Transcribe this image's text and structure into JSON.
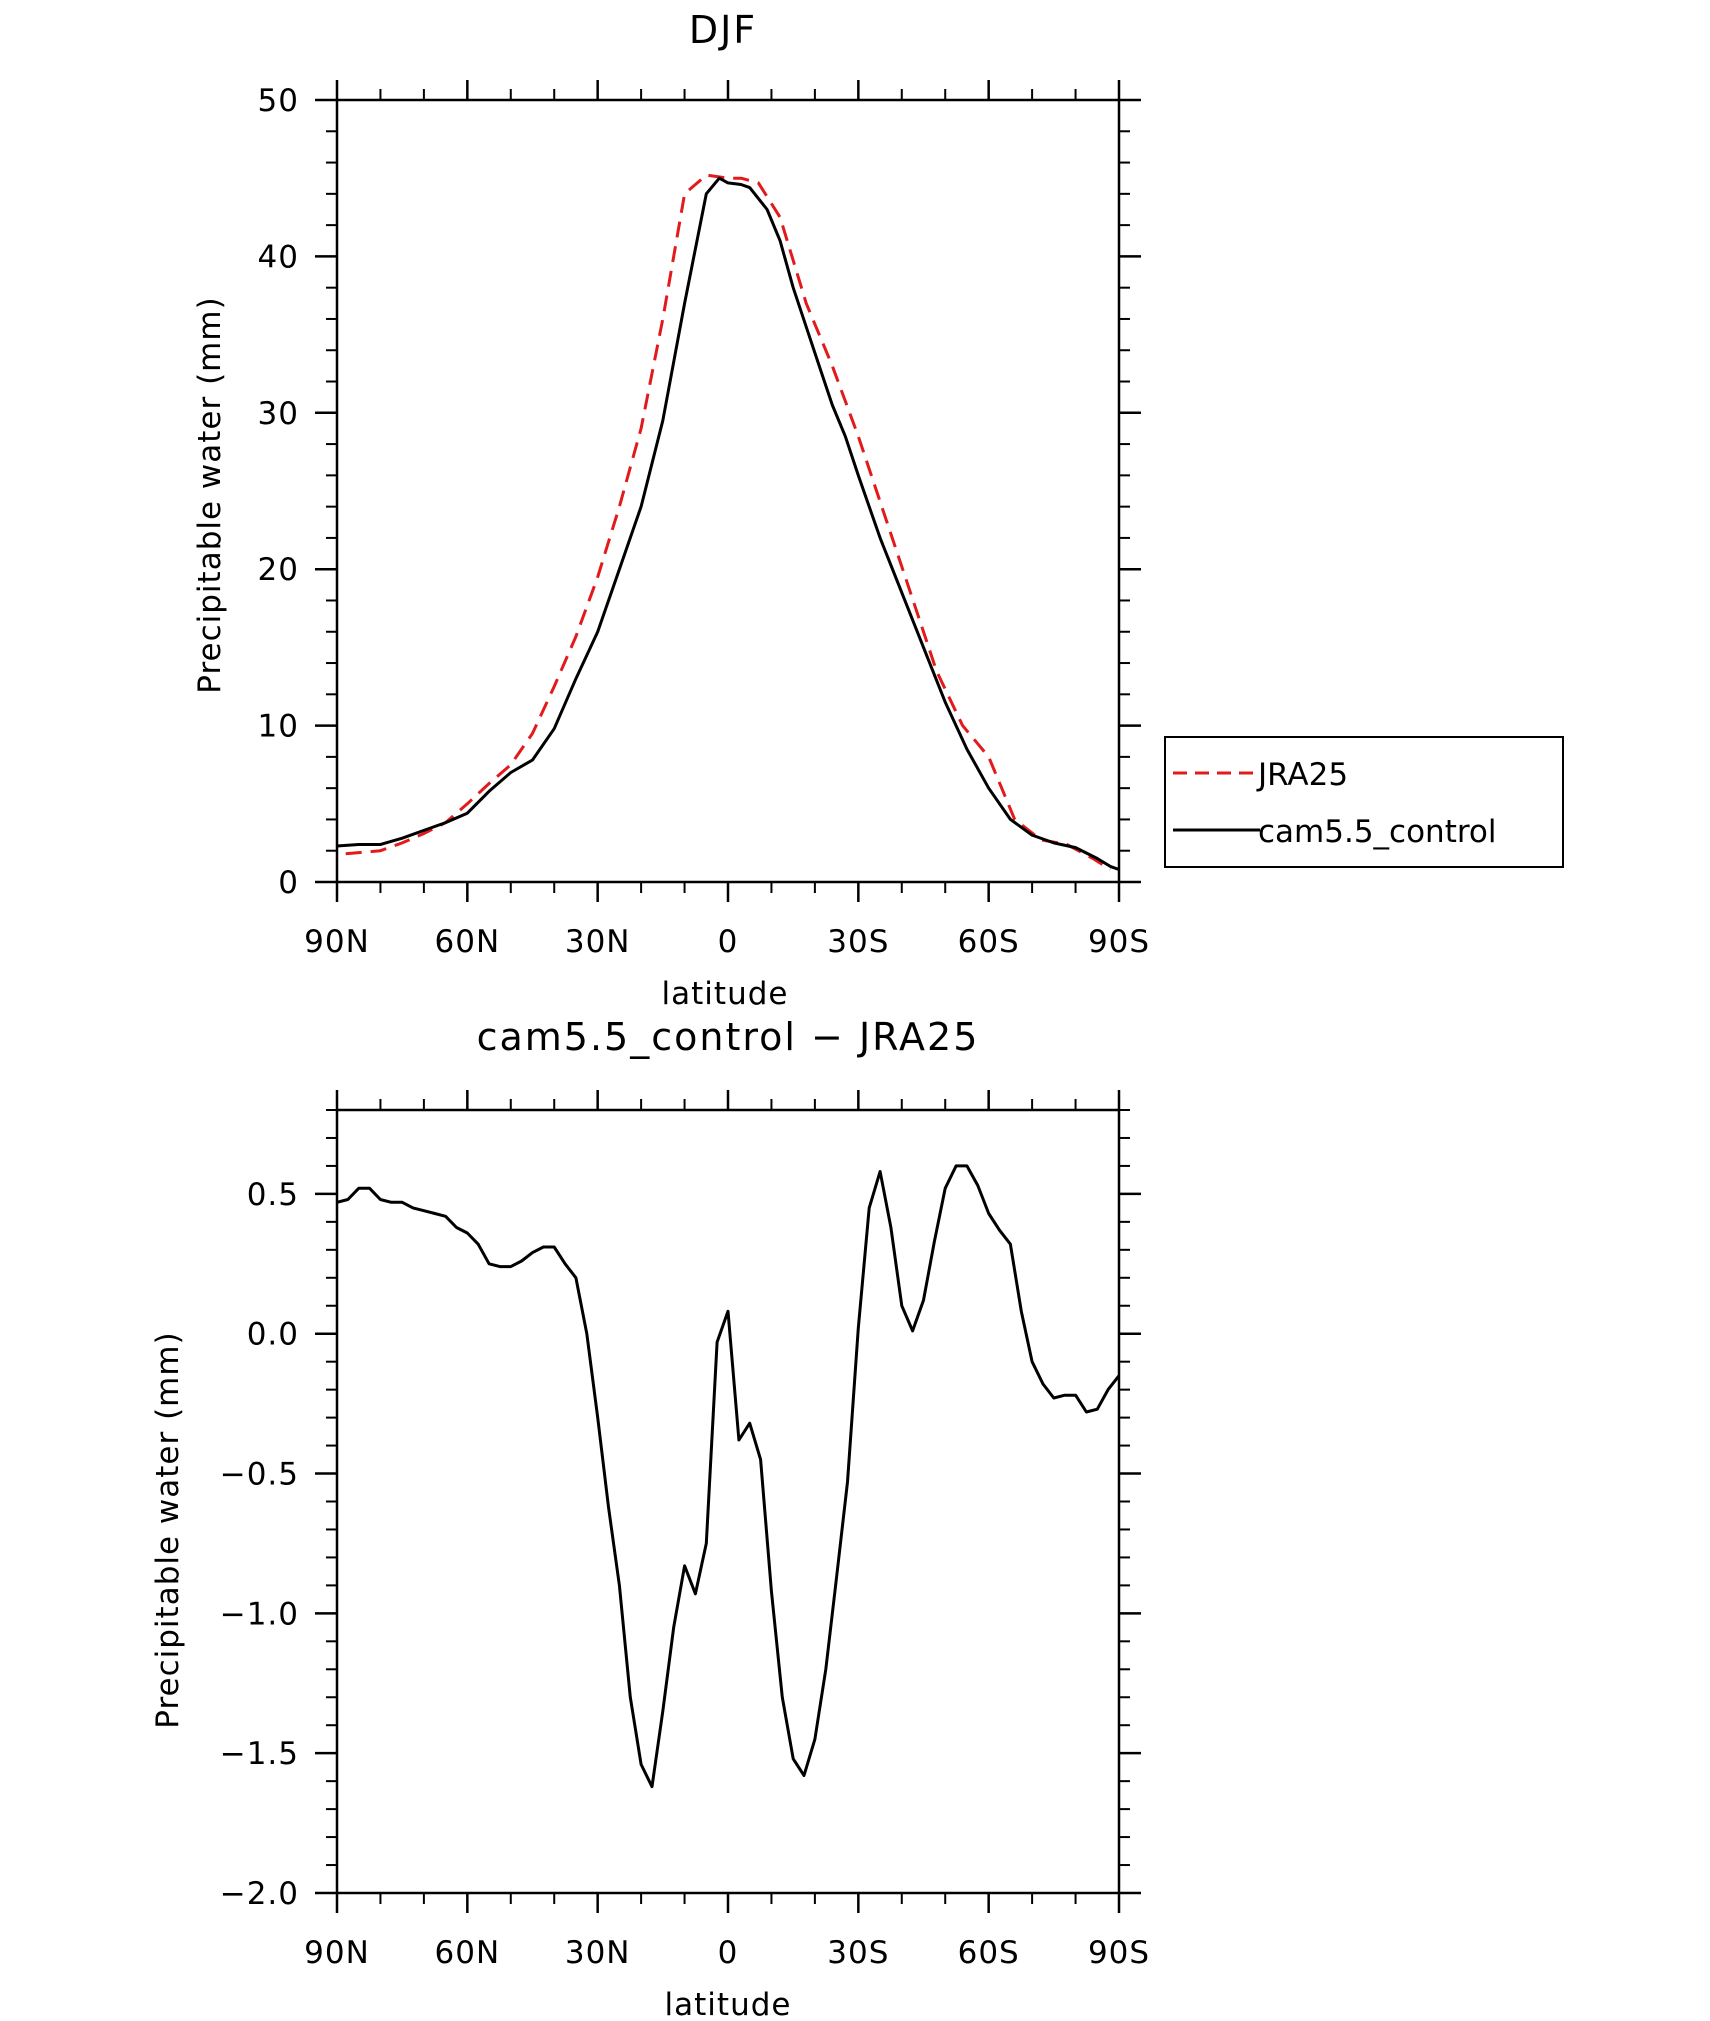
{
  "chart_data": [
    {
      "type": "line",
      "title": "DJF",
      "xlabel": "latitude",
      "ylabel": "Precipitable water (mm)",
      "xlim": [
        90,
        -90
      ],
      "ylim": [
        0,
        50
      ],
      "xticks": [
        90,
        60,
        30,
        0,
        -30,
        -60,
        -90
      ],
      "xtick_labels": [
        "90N",
        "60N",
        "30N",
        "0",
        "30S",
        "60S",
        "90S"
      ],
      "yticks": [
        0,
        10,
        20,
        30,
        40,
        50
      ],
      "ytick_labels": [
        "0",
        "10",
        "20",
        "30",
        "40",
        "50"
      ],
      "legend_position": "right",
      "series": [
        {
          "name": "JRA25",
          "color": "#e31a1c",
          "dash": "dashed",
          "x": [
            88,
            80,
            75,
            70,
            65,
            60,
            55,
            50,
            45,
            40,
            35,
            30,
            25,
            20,
            15,
            10,
            5,
            0,
            -3,
            -7,
            -12,
            -18,
            -24,
            -30,
            -36,
            -42,
            -48,
            -54,
            -60,
            -66,
            -72,
            -78,
            -84,
            -88
          ],
          "y": [
            1.8,
            2.0,
            2.5,
            3.1,
            3.8,
            5.0,
            6.3,
            7.5,
            9.5,
            12.5,
            15.7,
            19.5,
            24.0,
            29.0,
            36.0,
            44.0,
            45.2,
            45.0,
            45.0,
            44.7,
            42.5,
            37.0,
            33.0,
            28.5,
            23.5,
            18.5,
            13.5,
            10.0,
            8.0,
            4.0,
            2.7,
            2.4,
            1.5,
            0.8
          ]
        },
        {
          "name": "cam5.5_control",
          "color": "#000000",
          "dash": "solid",
          "x": [
            90,
            85,
            80,
            75,
            70,
            65,
            60,
            55,
            50,
            45,
            40,
            35,
            30,
            25,
            20,
            15,
            10,
            5,
            2,
            0,
            -3,
            -5,
            -9,
            -12,
            -15,
            -18,
            -21,
            -24,
            -27,
            -30,
            -35,
            -40,
            -45,
            -50,
            -55,
            -60,
            -65,
            -70,
            -75,
            -80,
            -85,
            -88,
            -90
          ],
          "y": [
            2.3,
            2.4,
            2.4,
            2.8,
            3.3,
            3.8,
            4.4,
            5.8,
            7.0,
            7.8,
            9.8,
            13.0,
            16.0,
            20.0,
            24.0,
            29.5,
            37.0,
            44.0,
            45.0,
            44.7,
            44.6,
            44.4,
            43.0,
            41.0,
            38.0,
            35.5,
            33.0,
            30.5,
            28.5,
            26.0,
            22.0,
            18.5,
            15.0,
            11.5,
            8.5,
            6.0,
            4.0,
            3.0,
            2.5,
            2.2,
            1.5,
            1.0,
            0.8
          ]
        }
      ]
    },
    {
      "type": "line",
      "title": "cam5.5_control − JRA25",
      "xlabel": "latitude",
      "ylabel": "Precipitable water (mm)",
      "xlim": [
        90,
        -90
      ],
      "ylim": [
        -2.0,
        0.8
      ],
      "xticks": [
        90,
        60,
        30,
        0,
        -30,
        -60,
        -90
      ],
      "xtick_labels": [
        "90N",
        "60N",
        "30N",
        "0",
        "30S",
        "60S",
        "90S"
      ],
      "yticks": [
        -2.0,
        -1.5,
        -1.0,
        -0.5,
        0.0,
        0.5
      ],
      "ytick_labels": [
        "−2.0",
        "−1.5",
        "−1.0",
        "−0.5",
        "0.0",
        "0.5"
      ],
      "series": [
        {
          "color": "#000000",
          "dash": "solid",
          "x": [
            90,
            87.5,
            85,
            82.5,
            80,
            77.5,
            75,
            72.5,
            70,
            67.5,
            65,
            62.5,
            60,
            57.5,
            55,
            52.5,
            50,
            47.5,
            45,
            42.5,
            40,
            37.5,
            35,
            32.5,
            30,
            27.5,
            25,
            22.5,
            20,
            17.5,
            15,
            12.5,
            10,
            7.5,
            5,
            2.5,
            0,
            -2.5,
            -5,
            -7.5,
            -10,
            -12.5,
            -15,
            -17.5,
            -20,
            -22.5,
            -25,
            -27.5,
            -30,
            -32.5,
            -35,
            -37.5,
            -40,
            -42.5,
            -45,
            -47.5,
            -50,
            -52.5,
            -55,
            -57.5,
            -60,
            -62.5,
            -65,
            -67.5,
            -70,
            -72.5,
            -75,
            -77.5,
            -80,
            -82.5,
            -85,
            -87.5,
            -90
          ],
          "y": [
            0.47,
            0.48,
            0.52,
            0.52,
            0.48,
            0.47,
            0.47,
            0.45,
            0.44,
            0.43,
            0.42,
            0.38,
            0.36,
            0.32,
            0.25,
            0.24,
            0.24,
            0.26,
            0.29,
            0.31,
            0.31,
            0.25,
            0.2,
            0.0,
            -0.3,
            -0.62,
            -0.9,
            -1.3,
            -1.54,
            -1.62,
            -1.35,
            -1.05,
            -0.83,
            -0.93,
            -0.75,
            -0.03,
            0.08,
            -0.38,
            -0.32,
            -0.45,
            -0.92,
            -1.3,
            -1.52,
            -1.58,
            -1.45,
            -1.2,
            -0.87,
            -0.53,
            0.02,
            0.45,
            0.58,
            0.38,
            0.1,
            0.01,
            0.12,
            0.33,
            0.52,
            0.6,
            0.6,
            0.53,
            0.43,
            0.37,
            0.32,
            0.08,
            -0.1,
            -0.18,
            -0.23,
            -0.22,
            -0.22,
            -0.28,
            -0.27,
            -0.2,
            -0.15
          ]
        }
      ]
    }
  ]
}
